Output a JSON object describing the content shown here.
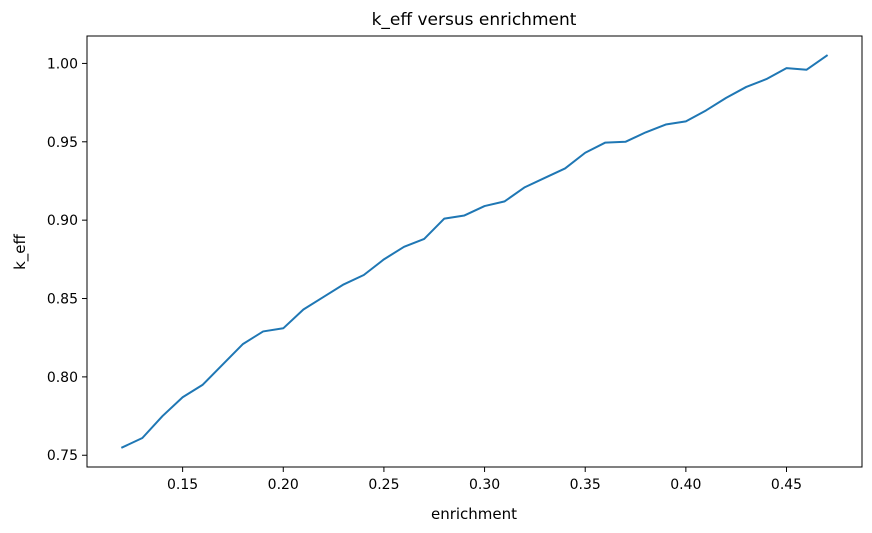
{
  "chart_data": {
    "type": "line",
    "title": "k_eff versus enrichment",
    "xlabel": "enrichment",
    "ylabel": "k_eff",
    "xlim": [
      0.1025,
      0.4875
    ],
    "ylim": [
      0.7425,
      1.0175
    ],
    "xticks": [
      0.15,
      0.2,
      0.25,
      0.3,
      0.35,
      0.4,
      0.45
    ],
    "xtick_labels": [
      "0.15",
      "0.20",
      "0.25",
      "0.30",
      "0.35",
      "0.40",
      "0.45"
    ],
    "yticks": [
      0.75,
      0.8,
      0.85,
      0.9,
      0.95,
      1.0
    ],
    "ytick_labels": [
      "0.75",
      "0.80",
      "0.85",
      "0.90",
      "0.95",
      "1.00"
    ],
    "grid": false,
    "series": [
      {
        "color": "#1f77b4",
        "x": [
          0.12,
          0.13,
          0.14,
          0.15,
          0.16,
          0.17,
          0.18,
          0.19,
          0.2,
          0.21,
          0.22,
          0.23,
          0.24,
          0.25,
          0.26,
          0.27,
          0.28,
          0.29,
          0.3,
          0.31,
          0.32,
          0.33,
          0.34,
          0.35,
          0.36,
          0.37,
          0.38,
          0.39,
          0.4,
          0.41,
          0.42,
          0.43,
          0.44,
          0.45,
          0.46,
          0.47
        ],
        "y": [
          0.755,
          0.761,
          0.775,
          0.787,
          0.795,
          0.808,
          0.821,
          0.829,
          0.831,
          0.843,
          0.851,
          0.859,
          0.865,
          0.875,
          0.883,
          0.888,
          0.901,
          0.903,
          0.909,
          0.912,
          0.921,
          0.927,
          0.933,
          0.943,
          0.9495,
          0.95,
          0.956,
          0.961,
          0.963,
          0.97,
          0.978,
          0.985,
          0.99,
          0.997,
          0.996,
          1.005
        ]
      }
    ]
  }
}
